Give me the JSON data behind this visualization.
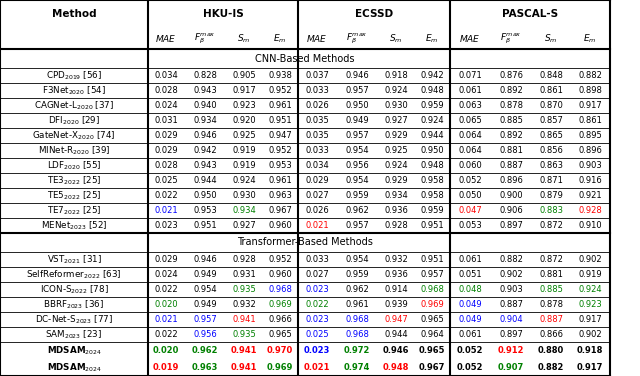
{
  "cnn_section_title": "CNN-Based Methods",
  "transformer_section_title": "Transformer-Based Methods",
  "cnn_rows": [
    {
      "method": "CPD$_{2019}$ [56]",
      "data": [
        "0.034",
        "0.828",
        "0.905",
        "0.938",
        "0.037",
        "0.946",
        "0.918",
        "0.942",
        "0.071",
        "0.876",
        "0.848",
        "0.882"
      ]
    },
    {
      "method": "F3Net$_{2020}$ [54]",
      "data": [
        "0.028",
        "0.943",
        "0.917",
        "0.952",
        "0.033",
        "0.957",
        "0.924",
        "0.948",
        "0.061",
        "0.892",
        "0.861",
        "0.898"
      ]
    },
    {
      "method": "CAGNet-L$_{2020}$ [37]",
      "data": [
        "0.024",
        "0.940",
        "0.923",
        "0.961",
        "0.026",
        "0.950",
        "0.930",
        "0.959",
        "0.063",
        "0.878",
        "0.870",
        "0.917"
      ]
    },
    {
      "method": "DFI$_{2020}$ [29]",
      "data": [
        "0.031",
        "0.934",
        "0.920",
        "0.951",
        "0.035",
        "0.949",
        "0.927",
        "0.924",
        "0.065",
        "0.885",
        "0.857",
        "0.861"
      ]
    },
    {
      "method": "GateNet-X$_{2020}$ [74]",
      "data": [
        "0.029",
        "0.946",
        "0.925",
        "0.947",
        "0.035",
        "0.957",
        "0.929",
        "0.944",
        "0.064",
        "0.892",
        "0.865",
        "0.895"
      ]
    },
    {
      "method": "MINet-R$_{2020}$ [39]",
      "data": [
        "0.029",
        "0.942",
        "0.919",
        "0.952",
        "0.033",
        "0.954",
        "0.925",
        "0.950",
        "0.064",
        "0.881",
        "0.856",
        "0.896"
      ]
    },
    {
      "method": "LDF$_{2020}$ [55]",
      "data": [
        "0.028",
        "0.943",
        "0.919",
        "0.953",
        "0.034",
        "0.956",
        "0.924",
        "0.948",
        "0.060",
        "0.887",
        "0.863",
        "0.903"
      ]
    },
    {
      "method": "TE3$_{2022}$ [25]",
      "data": [
        "0.025",
        "0.944",
        "0.924",
        "0.961",
        "0.029",
        "0.954",
        "0.929",
        "0.958",
        "0.052",
        "0.896",
        "0.871",
        "0.916"
      ]
    },
    {
      "method": "TE5$_{2022}$ [25]",
      "data": [
        "0.022",
        "0.950",
        "0.930",
        "0.963",
        "0.027",
        "0.959",
        "0.934",
        "0.958",
        "0.050",
        "0.900",
        "0.879",
        "0.921"
      ]
    },
    {
      "method": "TE7$_{2022}$ [25]",
      "data": [
        "0.021",
        "0.953",
        "0.934",
        "0.967",
        "0.026",
        "0.962",
        "0.936",
        "0.959",
        "0.047",
        "0.906",
        "0.883",
        "0.928"
      ]
    },
    {
      "method": "MENet$_{2023}$ [52]",
      "data": [
        "0.023",
        "0.951",
        "0.927",
        "0.960",
        "0.021",
        "0.957",
        "0.928",
        "0.951",
        "0.053",
        "0.897",
        "0.872",
        "0.910"
      ]
    }
  ],
  "cnn_colors": [
    [
      "k",
      "k",
      "k",
      "k",
      "k",
      "k",
      "k",
      "k",
      "k",
      "k",
      "k",
      "k"
    ],
    [
      "k",
      "k",
      "k",
      "k",
      "k",
      "k",
      "k",
      "k",
      "k",
      "k",
      "k",
      "k"
    ],
    [
      "k",
      "k",
      "k",
      "k",
      "k",
      "k",
      "k",
      "k",
      "k",
      "k",
      "k",
      "k"
    ],
    [
      "k",
      "k",
      "k",
      "k",
      "k",
      "k",
      "k",
      "k",
      "k",
      "k",
      "k",
      "k"
    ],
    [
      "k",
      "k",
      "k",
      "k",
      "k",
      "k",
      "k",
      "k",
      "k",
      "k",
      "k",
      "k"
    ],
    [
      "k",
      "k",
      "k",
      "k",
      "k",
      "k",
      "k",
      "k",
      "k",
      "k",
      "k",
      "k"
    ],
    [
      "k",
      "k",
      "k",
      "k",
      "k",
      "k",
      "k",
      "k",
      "k",
      "k",
      "k",
      "k"
    ],
    [
      "k",
      "k",
      "k",
      "k",
      "k",
      "k",
      "k",
      "k",
      "k",
      "k",
      "k",
      "k"
    ],
    [
      "k",
      "k",
      "k",
      "k",
      "k",
      "k",
      "k",
      "k",
      "k",
      "k",
      "k",
      "k"
    ],
    [
      "blue",
      "k",
      "green",
      "k",
      "k",
      "k",
      "k",
      "k",
      "red",
      "k",
      "green",
      "red"
    ],
    [
      "k",
      "k",
      "k",
      "k",
      "red",
      "k",
      "k",
      "k",
      "k",
      "k",
      "k",
      "k"
    ]
  ],
  "transformer_rows": [
    {
      "method": "VST$_{2021}$ [31]",
      "data": [
        "0.029",
        "0.946",
        "0.928",
        "0.952",
        "0.033",
        "0.954",
        "0.932",
        "0.951",
        "0.061",
        "0.882",
        "0.872",
        "0.902"
      ],
      "bold": false
    },
    {
      "method": "SelfReformer$_{2022}$ [63]",
      "data": [
        "0.024",
        "0.949",
        "0.931",
        "0.960",
        "0.027",
        "0.959",
        "0.936",
        "0.957",
        "0.051",
        "0.902",
        "0.881",
        "0.919"
      ],
      "bold": false
    },
    {
      "method": "ICON-S$_{2022}$ [78]",
      "data": [
        "0.022",
        "0.954",
        "0.935",
        "0.968",
        "0.023",
        "0.962",
        "0.914",
        "0.968",
        "0.048",
        "0.903",
        "0.885",
        "0.924"
      ],
      "bold": false
    },
    {
      "method": "BBRF$_{2023}$ [36]",
      "data": [
        "0.020",
        "0.949",
        "0.932",
        "0.969",
        "0.022",
        "0.961",
        "0.939",
        "0.969",
        "0.049",
        "0.887",
        "0.878",
        "0.923"
      ],
      "bold": false
    },
    {
      "method": "DC-Net-S$_{2023}$ [77]",
      "data": [
        "0.021",
        "0.957",
        "0.941",
        "0.966",
        "0.023",
        "0.968",
        "0.947",
        "0.965",
        "0.049",
        "0.904",
        "0.887",
        "0.917"
      ],
      "bold": false
    },
    {
      "method": "SAM$_{2023}$ [23]",
      "data": [
        "0.022",
        "0.956",
        "0.935",
        "0.965",
        "0.025",
        "0.968",
        "0.944",
        "0.964",
        "0.061",
        "0.897",
        "0.866",
        "0.902"
      ],
      "bold": false
    },
    {
      "method": "MDSAM$_{2024}$",
      "data": [
        "0.020",
        "0.962",
        "0.941",
        "0.970",
        "0.023",
        "0.972",
        "0.946",
        "0.965",
        "0.052",
        "0.912",
        "0.880",
        "0.918"
      ],
      "bold": true
    },
    {
      "method": "MDSAM$_{2024}$",
      "data": [
        "0.019",
        "0.963",
        "0.941",
        "0.969",
        "0.021",
        "0.974",
        "0.948",
        "0.967",
        "0.052",
        "0.907",
        "0.882",
        "0.917"
      ],
      "bold": true
    }
  ],
  "transformer_colors": [
    [
      "k",
      "k",
      "k",
      "k",
      "k",
      "k",
      "k",
      "k",
      "k",
      "k",
      "k",
      "k"
    ],
    [
      "k",
      "k",
      "k",
      "k",
      "k",
      "k",
      "k",
      "k",
      "k",
      "k",
      "k",
      "k"
    ],
    [
      "k",
      "k",
      "green",
      "blue",
      "blue",
      "k",
      "k",
      "green",
      "green",
      "k",
      "green",
      "green"
    ],
    [
      "green",
      "k",
      "k",
      "green",
      "green",
      "k",
      "k",
      "red",
      "blue",
      "k",
      "k",
      "green"
    ],
    [
      "blue",
      "blue",
      "red",
      "k",
      "blue",
      "blue",
      "red",
      "k",
      "blue",
      "blue",
      "red",
      "k"
    ],
    [
      "k",
      "blue",
      "green",
      "k",
      "blue",
      "blue",
      "k",
      "k",
      "k",
      "k",
      "k",
      "k"
    ],
    [
      "green",
      "green",
      "red",
      "red",
      "blue",
      "green",
      "k",
      "k",
      "k",
      "red",
      "k",
      "k"
    ],
    [
      "red",
      "green",
      "red",
      "green",
      "red",
      "green",
      "red",
      "k",
      "k",
      "green",
      "k",
      "k"
    ]
  ]
}
